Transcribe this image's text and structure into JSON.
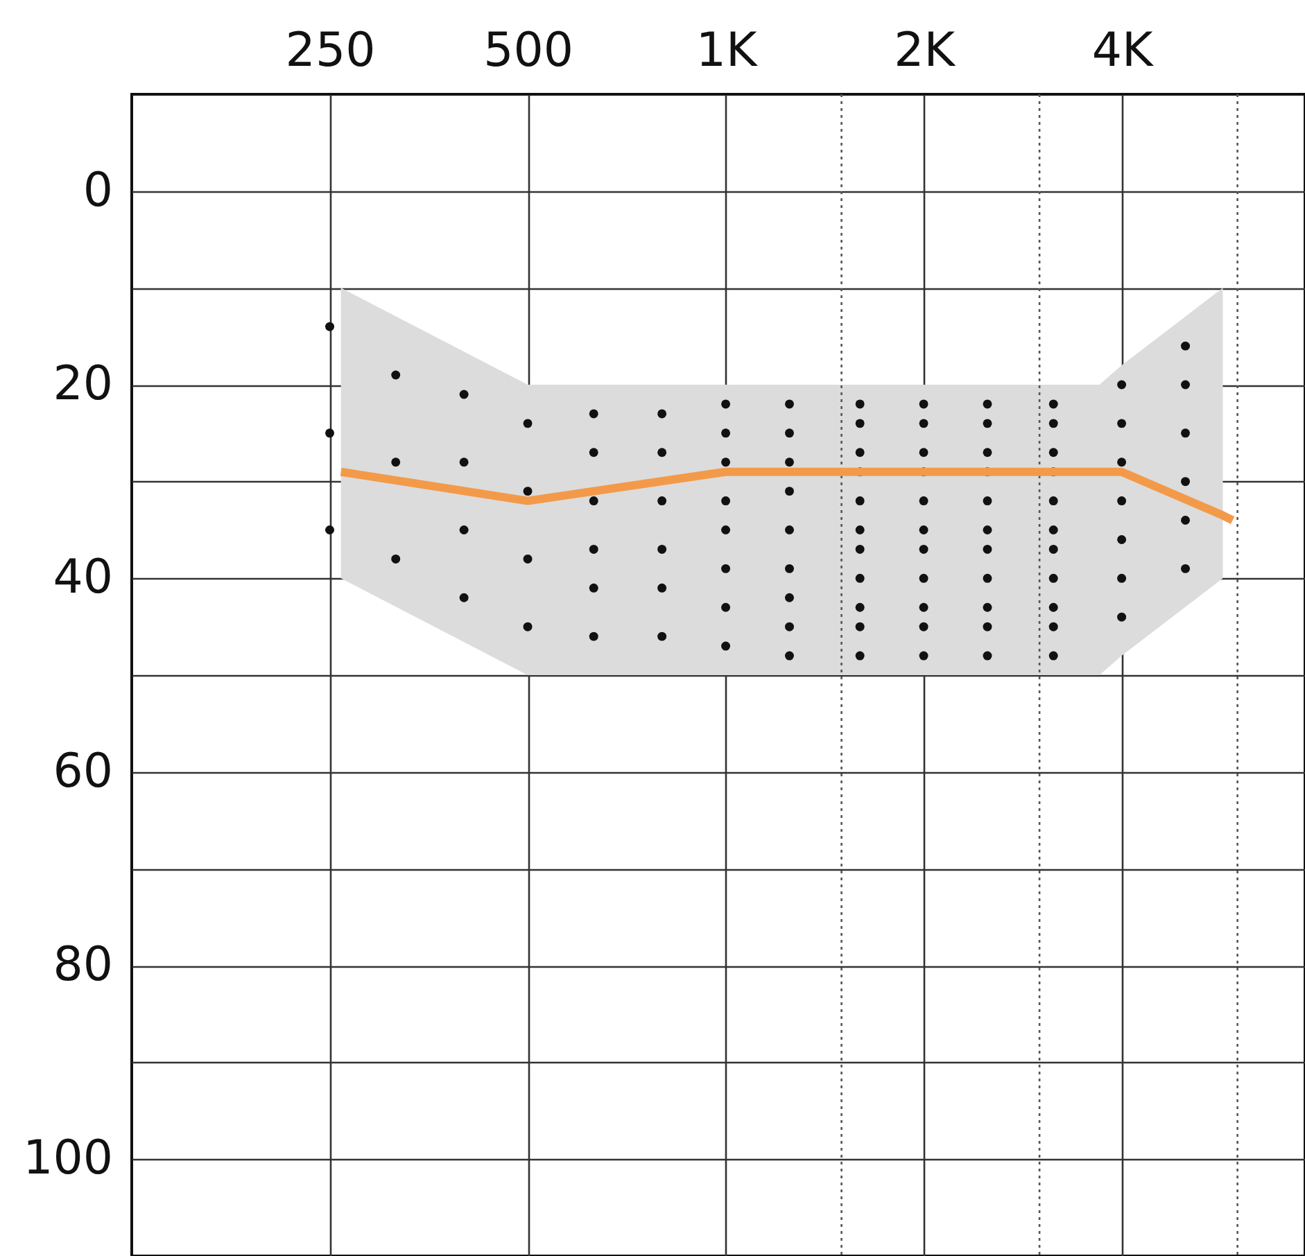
{
  "chart_data": {
    "type": "line",
    "log": "x",
    "grid": true,
    "xlim": [
      125,
      7600
    ],
    "ylim": [
      110,
      -10
    ],
    "xticks": [
      250,
      500,
      {
        "value": 1000,
        "label": "1K"
      },
      {
        "value": 2000,
        "label": "2K"
      },
      {
        "value": 4000,
        "label": "4K"
      }
    ],
    "yticks": [
      0,
      {
        "value": 10,
        "label": null
      },
      20,
      {
        "value": 30,
        "label": null
      },
      40,
      {
        "value": 50,
        "label": null
      },
      60,
      {
        "value": 70,
        "label": null
      },
      80,
      {
        "value": 90,
        "label": null
      },
      100
    ],
    "ref_lines": [
      {
        "axis": "x",
        "value": 1500,
        "line_style": "dotted",
        "color": "#555555"
      },
      {
        "axis": "x",
        "value": 3000,
        "line_style": "dotted",
        "color": "#555555"
      },
      {
        "axis": "x",
        "value": 6000,
        "line_style": "dotted",
        "color": "#555555"
      }
    ],
    "series": [
      {
        "type": "scatter",
        "color": "#111111",
        "marker": "circle",
        "x": [
          250,
          250,
          250,
          315,
          315,
          315,
          400,
          400,
          400,
          400,
          500,
          500,
          500,
          500,
          630,
          630,
          630,
          630,
          630,
          630,
          800,
          800,
          800,
          800,
          800,
          800,
          1000,
          1000,
          1000,
          1000,
          1000,
          1000,
          1000,
          1000,
          1250,
          1250,
          1250,
          1250,
          1250,
          1250,
          1250,
          1250,
          1250,
          1600,
          1600,
          1600,
          1600,
          1600,
          1600,
          1600,
          1600,
          1600,
          1600,
          1600,
          2000,
          2000,
          2000,
          2000,
          2000,
          2000,
          2000,
          2000,
          2000,
          2000,
          2000,
          2500,
          2500,
          2500,
          2500,
          2500,
          2500,
          2500,
          2500,
          2500,
          2500,
          2500,
          3150,
          3150,
          3150,
          3150,
          3150,
          3150,
          3150,
          3150,
          3150,
          3150,
          3150,
          4000,
          4000,
          4000,
          4000,
          4000,
          4000,
          4000,
          5000,
          5000,
          5000,
          5000,
          5000,
          5000
        ],
        "values": [
          14,
          25,
          35,
          19,
          28,
          38,
          21,
          28,
          35,
          42,
          24,
          31,
          38,
          45,
          23,
          27,
          32,
          37,
          41,
          46,
          23,
          27,
          32,
          37,
          41,
          46,
          22,
          25,
          28,
          32,
          35,
          39,
          43,
          47,
          22,
          25,
          28,
          31,
          35,
          39,
          42,
          45,
          48,
          22,
          24,
          27,
          29,
          32,
          35,
          37,
          40,
          43,
          45,
          48,
          22,
          24,
          27,
          29,
          32,
          35,
          37,
          40,
          43,
          45,
          48,
          22,
          24,
          27,
          29,
          32,
          35,
          37,
          40,
          43,
          45,
          48,
          22,
          24,
          27,
          29,
          32,
          35,
          37,
          40,
          43,
          45,
          48,
          20,
          24,
          28,
          32,
          36,
          40,
          44,
          16,
          20,
          25,
          30,
          34,
          39
        ]
      },
      {
        "color": "#f39a4a",
        "line_style": "solid",
        "marker": "none",
        "x": [
          260,
          500,
          1000,
          3700,
          4000,
          5700,
          5900
        ],
        "values": [
          29,
          32,
          29,
          29,
          29,
          33.5,
          34
        ],
        "lower": [
          10,
          20,
          20,
          20,
          18,
          10,
          null
        ],
        "upper": [
          40,
          50,
          50,
          50,
          48,
          40,
          null
        ]
      }
    ]
  }
}
